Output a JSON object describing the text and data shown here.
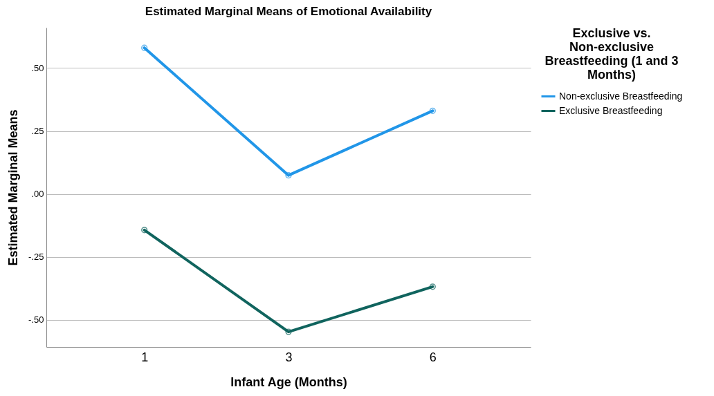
{
  "chart_data": {
    "type": "line",
    "title": "Estimated Marginal Means of Emotional Availability",
    "xlabel": "Infant Age (Months)",
    "ylabel": "Estimated Marginal Means",
    "legend_title": "Exclusive vs. Non-exclusive Breastfeeding (1 and 3 Months)",
    "categories": [
      "1",
      "3",
      "6"
    ],
    "series": [
      {
        "name": "Non-exclusive Breastfeeding",
        "color": "#2196e8",
        "values": [
          0.58,
          0.074,
          0.33
        ]
      },
      {
        "name": "Exclusive Breastfeeding",
        "color": "#10645e",
        "values": [
          -0.143,
          -0.547,
          -0.368
        ]
      }
    ],
    "ylim": [
      -0.607,
      0.66
    ],
    "yticks": [
      {
        "value": -0.5,
        "label": "-.50"
      },
      {
        "value": -0.25,
        "label": "-.25"
      },
      {
        "value": 0,
        "label": ".00"
      },
      {
        "value": 0.25,
        "label": ".25"
      },
      {
        "value": 0.5,
        "label": ".50"
      }
    ],
    "grid": "y",
    "legend": "top right",
    "marker": "circle",
    "line_style": "solid"
  }
}
